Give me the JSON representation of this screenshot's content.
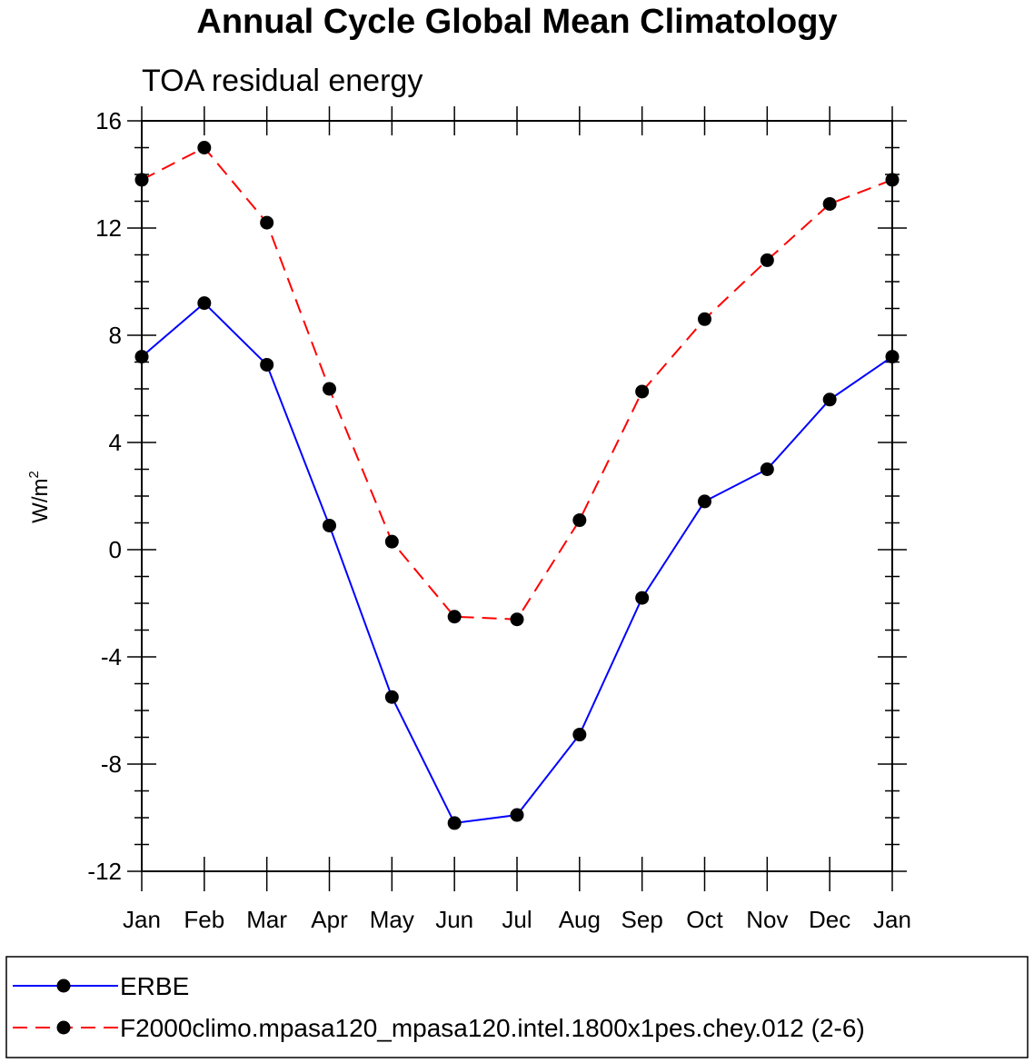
{
  "chart_data": {
    "type": "line",
    "title": "Annual Cycle Global Mean Climatology",
    "subtitle": "TOA residual energy",
    "ylabel_base": "W/m",
    "ylabel_sup": "2",
    "xlabel": "",
    "categories": [
      "Jan",
      "Feb",
      "Mar",
      "Apr",
      "May",
      "Jun",
      "Jul",
      "Aug",
      "Sep",
      "Oct",
      "Nov",
      "Dec",
      "Jan"
    ],
    "ylim": [
      -12,
      16
    ],
    "yticks": [
      -12,
      -8,
      -4,
      0,
      4,
      8,
      12,
      16
    ],
    "ytick_labels": [
      "-12",
      "-8",
      "-4",
      "0",
      "4",
      "8",
      "12",
      "16"
    ],
    "series": [
      {
        "name": "ERBE",
        "color": "#0000ff",
        "dash": "solid",
        "values": [
          7.2,
          9.2,
          6.9,
          0.9,
          -5.5,
          -10.2,
          -9.9,
          -6.9,
          -1.8,
          1.8,
          3.0,
          5.6,
          7.2
        ]
      },
      {
        "name": "F2000climo.mpasa120_mpasa120.intel.1800x1pes.chey.012 (2-6)",
        "color": "#ff0000",
        "dash": "dashed",
        "values": [
          13.8,
          15.0,
          12.2,
          6.0,
          0.3,
          -2.5,
          -2.6,
          1.1,
          5.9,
          8.6,
          10.8,
          12.9,
          13.8
        ]
      }
    ],
    "legend_position": "bottom",
    "marker_color": "#000000"
  }
}
